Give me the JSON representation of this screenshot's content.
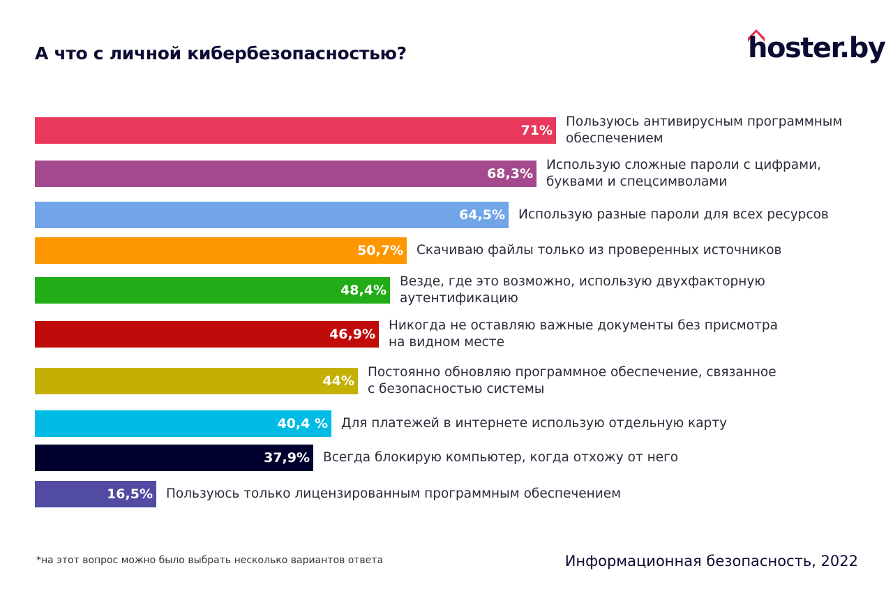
{
  "header": {
    "title": "А что с личной кибербезопасностью?",
    "logo_text": "hoster.by",
    "logo_roof_color": "#e8334f"
  },
  "footer": {
    "footnote": "*на этот вопрос можно было выбрать несколько вариантов ответа",
    "source": "Информационная безопасность, 2022"
  },
  "chart_data": {
    "type": "bar",
    "orientation": "horizontal",
    "title": "А что с личной кибербезопасностью?",
    "xlabel": "",
    "ylabel": "",
    "xlim": [
      0,
      100
    ],
    "grid": false,
    "legend": "none",
    "categories": [
      "Пользуюсь антивирусным программным обеспечением",
      "Использую сложные пароли с цифрами, буквами и спецсимволами",
      "Использую разные пароли для всех ресурсов",
      "Скачиваю файлы только из проверенных источников",
      "Везде, где это возможно, использую двухфакторную аутентификацию",
      "Никогда не оставляю важные документы без присмотра на видном месте",
      "Постоянно обновляю программное обеспечение, связанное с безопасностью системы",
      "Для платежей в интернете использую отдельную карту",
      "Всегда блокирую компьютер, когда отхожу от него",
      "Пользуюсь только лицензированным программным обеспечением"
    ],
    "label_lines": [
      [
        "Пользуюсь антивирусным программным",
        "обеспечением"
      ],
      [
        "Использую сложные пароли с цифрами,",
        "буквами и спецсимволами"
      ],
      [
        "Использую разные пароли для всех ресурсов"
      ],
      [
        "Скачиваю файлы только из проверенных источников"
      ],
      [
        "Везде, где это возможно, использую двухфакторную",
        "аутентификацию"
      ],
      [
        "Никогда не оставляю важные документы без присмотра",
        "на видном месте"
      ],
      [
        "Постоянно обновляю программное обеспечение, связанное",
        "с безопасностью системы"
      ],
      [
        "Для платежей в интернете использую отдельную карту"
      ],
      [
        "Всегда блокирую компьютер, когда отхожу от него"
      ],
      [
        "Пользуюсь только лицензированным программным обеспечением"
      ]
    ],
    "values": [
      71,
      68.3,
      64.5,
      50.7,
      48.4,
      46.9,
      44,
      40.4,
      37.9,
      16.5
    ],
    "value_labels": [
      "71%",
      "68,3%",
      "64,5%",
      "50,7%",
      "48,4%",
      "46,9%",
      "44%",
      "40,4 %",
      "37,9%",
      "16,5%"
    ],
    "colors": [
      "#e8385c",
      "#a5498e",
      "#72a5e8",
      "#fc9700",
      "#22ac18",
      "#c10b0b",
      "#c4b004",
      "#00bbe4",
      "#00002e",
      "#524ba3"
    ]
  }
}
